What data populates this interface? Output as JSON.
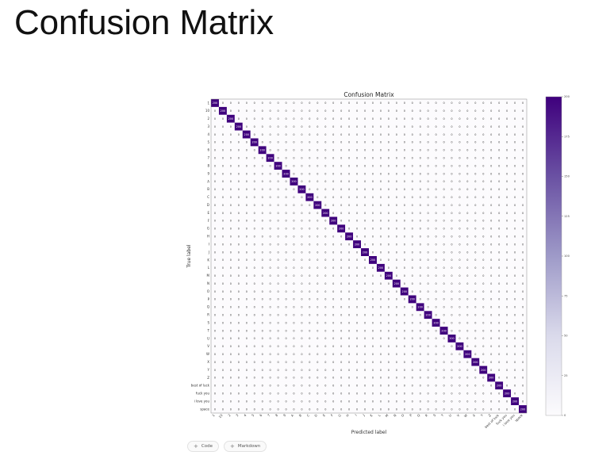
{
  "slide": {
    "title": "Confusion Matrix"
  },
  "notebook": {
    "add_code_label": "Code",
    "add_markdown_label": "Markdown",
    "add_icon": "plus-icon",
    "plus_glyph": "+"
  },
  "chart_data": {
    "type": "heatmap",
    "title": "Confusion Matrix",
    "xlabel": "Predicted label",
    "ylabel": "True label",
    "labels": [
      "1",
      "10",
      "2",
      "3",
      "4",
      "5",
      "6",
      "7",
      "8",
      "9",
      "A",
      "B",
      "C",
      "D",
      "E",
      "F",
      "G",
      "H",
      "I",
      "J",
      "K",
      "L",
      "M",
      "N",
      "O",
      "P",
      "Q",
      "R",
      "S",
      "T",
      "U",
      "V",
      "W",
      "X",
      "Y",
      "Z",
      "best of luck",
      "fuck you",
      "i love you",
      "space"
    ],
    "diagonal_value": 200,
    "off_diagonal_value": 0,
    "colorbar": {
      "min": 0,
      "max": 200,
      "ticks": [
        0,
        25,
        50,
        75,
        100,
        125,
        150,
        175,
        200
      ]
    },
    "colormap": {
      "low": "#fcfbfd",
      "high": "#3f007d"
    },
    "grid": false
  }
}
